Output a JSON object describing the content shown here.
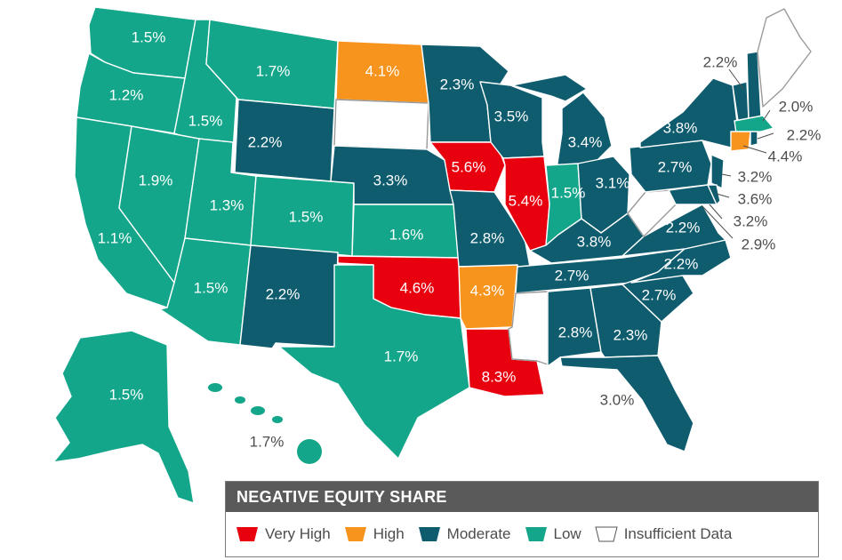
{
  "legend": {
    "title": "NEGATIVE EQUITY SHARE",
    "items": [
      {
        "label": "Very High",
        "color": "#e8000f"
      },
      {
        "label": "High",
        "color": "#f7941d"
      },
      {
        "label": "Moderate",
        "color": "#0e5c6e"
      },
      {
        "label": "Low",
        "color": "#13a68a"
      },
      {
        "label": "Insufficient Data",
        "color": "#ffffff"
      }
    ]
  },
  "colors": {
    "very_high": "#e8000f",
    "high": "#f7941d",
    "moderate": "#0e5c6e",
    "low": "#13a68a",
    "insufficient": "#ffffff"
  },
  "states": {
    "WA": "1.5%",
    "OR": "1.2%",
    "CA": "1.1%",
    "ID": "1.5%",
    "NV": "1.9%",
    "MT": "1.7%",
    "WY": "2.2%",
    "UT": "1.3%",
    "AZ": "1.5%",
    "CO": "1.5%",
    "NM": "2.2%",
    "ND": "4.1%",
    "NE": "3.3%",
    "KS": "1.6%",
    "OK": "4.6%",
    "TX": "1.7%",
    "MN": "2.3%",
    "IA": "5.6%",
    "MO": "2.8%",
    "AR": "4.3%",
    "LA": "8.3%",
    "WI": "3.5%",
    "IL": "5.4%",
    "MI": "3.4%",
    "IN": "1.5%",
    "OH": "3.1%",
    "KY": "3.8%",
    "TN": "2.7%",
    "MS": "",
    "AL": "2.8%",
    "GA": "2.3%",
    "FL": "3.0%",
    "SC": "2.7%",
    "NC": "2.2%",
    "VA": "2.2%",
    "WV": "",
    "PA": "2.7%",
    "NY": "3.8%",
    "VT": "2.2%",
    "MA": "2.0%",
    "RI": "2.2%",
    "CT": "4.4%",
    "NJ": "3.2%",
    "DE": "3.6%",
    "MD": "3.2%",
    "DC": "2.9%",
    "AK": "1.5%",
    "HI": "1.7%"
  }
}
